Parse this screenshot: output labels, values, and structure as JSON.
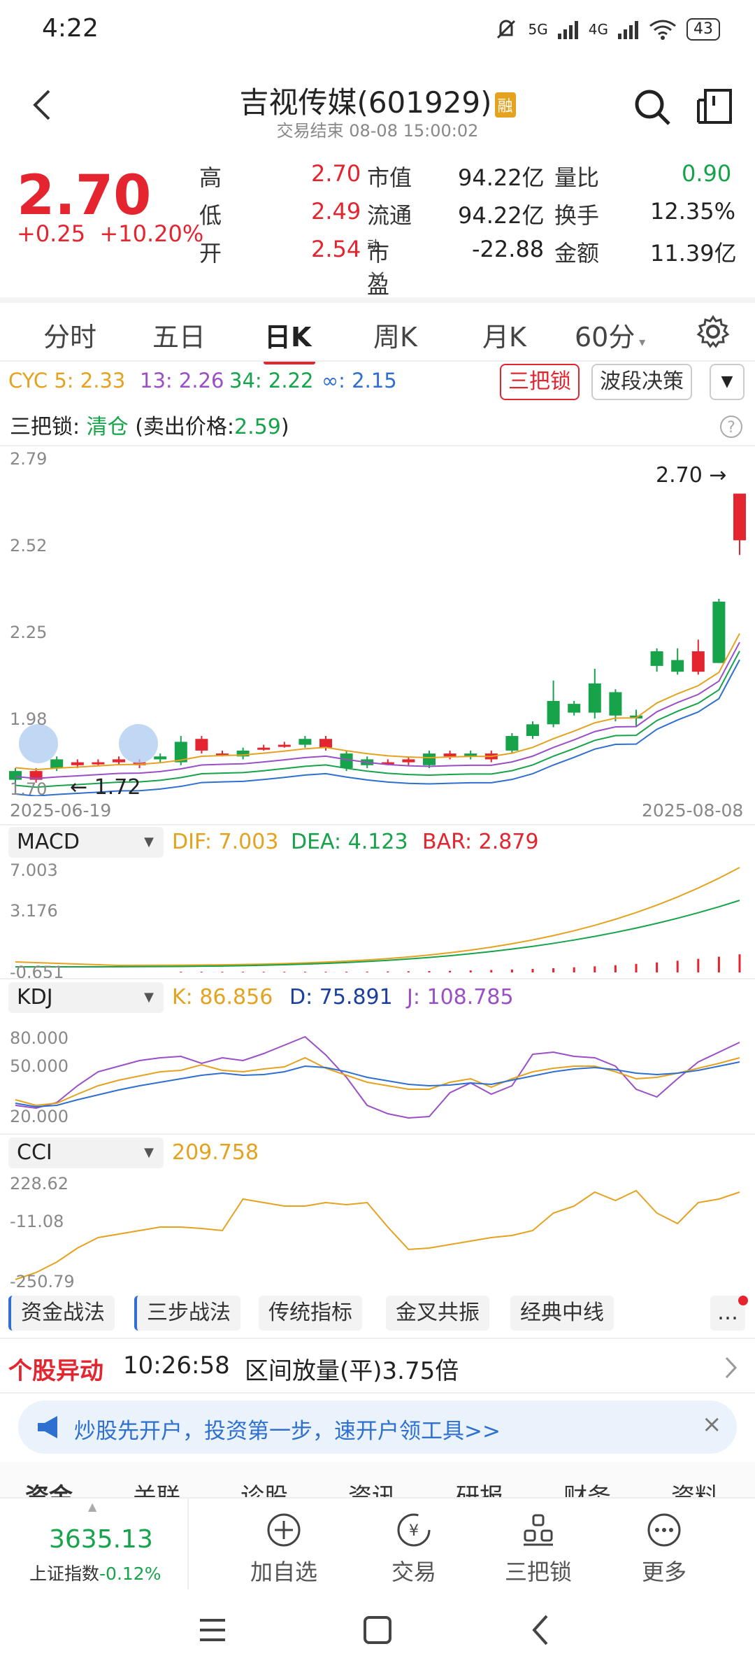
{
  "status": {
    "time": "4:22",
    "battery": "43",
    "net1": "5G",
    "net2": "4G"
  },
  "header": {
    "title": "吉视传媒(601929)",
    "badge": "融",
    "subtitle": "交易结束 08-08 15:00:02"
  },
  "quote": {
    "price": "2.70",
    "change": "+0.25",
    "change_pct": "+10.20%",
    "rows": [
      {
        "l1": "高",
        "v1": "2.70",
        "l2": "市值",
        "v2": "94.22亿",
        "l3": "量比",
        "v3": "0.90"
      },
      {
        "l1": "低",
        "v1": "2.49",
        "l2": "流通",
        "v2": "94.22亿",
        "l3": "换手",
        "v3": "12.35%"
      },
      {
        "l1": "开",
        "v1": "2.54",
        "l2": "市盈",
        "l2sup": "动",
        "v2": "-22.88",
        "l3": "金额",
        "v3": "11.39亿"
      }
    ]
  },
  "tabs": {
    "t1": "分时",
    "t2": "五日",
    "t3": "日K",
    "t4": "周K",
    "t5": "月K",
    "t6": "60分"
  },
  "cyc": {
    "label": "CYC 5: 2.33",
    "v13": "13: 2.26",
    "v34": "34: 2.22",
    "vinf": "∞: 2.15",
    "btn1": "三把锁",
    "btn2": "波段决策"
  },
  "lock": {
    "prefix": "三把锁: ",
    "status": "清仓",
    "open": " (卖出价格:",
    "price": "2.59",
    "close": ")"
  },
  "kline": {
    "y1": "2.79",
    "y2": "2.52",
    "y3": "2.25",
    "y4": "1.98",
    "y5": "1.70",
    "max_label": "2.70",
    "min_label": "1.72",
    "date_start": "2025-06-19",
    "date_end": "2025-08-08"
  },
  "macd": {
    "name": "MACD",
    "dif": "DIF: 7.003",
    "dea": "DEA: 4.123",
    "bar": "BAR: 2.879",
    "y1": "7.003",
    "y2": "3.176",
    "y3": "-0.651"
  },
  "kdj": {
    "name": "KDJ",
    "k": "K: 86.856",
    "d": "D: 75.891",
    "j": "J: 108.785",
    "y1": "80.000",
    "y2": "50.000",
    "y3": "20.000"
  },
  "cci": {
    "name": "CCI",
    "val": "209.758",
    "y1": "228.62",
    "y2": "-11.08",
    "y3": "-250.79"
  },
  "strategies": [
    "资金战法",
    "三步战法",
    "传统指标",
    "金叉共振",
    "经典中线"
  ],
  "alert": {
    "label": "个股异动",
    "time": "10:26:58",
    "text": "区间放量(平)3.75倍"
  },
  "promo": {
    "text": "炒股先开户，投资第一步，速开户领工具>>"
  },
  "bottom_tabs": [
    "资金",
    "关联",
    "诊股",
    "资讯",
    "研报",
    "财务",
    "资料"
  ],
  "index": {
    "value": "3635.13",
    "name": "上证指数",
    "pct": "-0.12%"
  },
  "actions": {
    "add": "加自选",
    "trade": "交易",
    "lock": "三把锁",
    "more": "更多"
  },
  "colors": {
    "up": "#e4252f",
    "down": "#16a34a",
    "accent": "#e4252f",
    "link": "#2e6fcf"
  }
}
